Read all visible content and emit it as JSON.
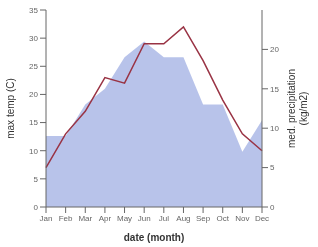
{
  "chart_data": {
    "type": "line",
    "xlabel": "date (month)",
    "ylabel": "max temp (C)",
    "y2label": "med. precipitation\n(kg/m2)",
    "categories": [
      "Jan",
      "Feb",
      "Mar",
      "Apr",
      "May",
      "Jun",
      "Jul",
      "Aug",
      "Sep",
      "Oct",
      "Nov",
      "Dec"
    ],
    "series": [
      {
        "type": "area",
        "color": "#b0bce8",
        "axis": "y2",
        "values": [
          9,
          9,
          13,
          15,
          19,
          21,
          19,
          19,
          13,
          13,
          7,
          11
        ]
      },
      {
        "type": "line",
        "color": "#993344",
        "values": [
          7,
          13,
          17,
          23,
          22,
          29,
          29,
          32,
          26,
          19,
          13,
          10
        ]
      }
    ],
    "ylim": [
      0,
      35
    ],
    "yticks": [
      0,
      5,
      10,
      15,
      20,
      25,
      30,
      35
    ],
    "y2lim": [
      0,
      25
    ],
    "y2ticks": [
      0,
      5,
      10,
      15,
      20
    ],
    "grid": false
  }
}
